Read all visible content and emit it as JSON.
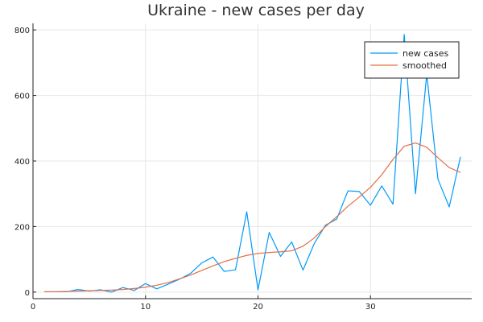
{
  "chart_data": {
    "type": "line",
    "title": "Ukraine - new cases per day",
    "xlabel": "",
    "ylabel": "",
    "xlim": [
      0,
      39
    ],
    "ylim": [
      -20,
      820
    ],
    "xticks": [
      0,
      10,
      20,
      30
    ],
    "yticks": [
      0,
      200,
      400,
      600,
      800
    ],
    "grid": true,
    "legend_position": "top-right",
    "series": [
      {
        "name": "new cases",
        "color": "#009af9",
        "x": [
          1,
          2,
          3,
          4,
          5,
          6,
          7,
          8,
          9,
          10,
          11,
          12,
          13,
          14,
          15,
          16,
          17,
          18,
          19,
          20,
          21,
          22,
          23,
          24,
          25,
          26,
          27,
          28,
          29,
          30,
          31,
          32,
          33,
          34,
          35,
          36,
          37,
          38
        ],
        "values": [
          1,
          1,
          1,
          8,
          3,
          7,
          0,
          14,
          5,
          26,
          10,
          24,
          39,
          57,
          89,
          107,
          63,
          68,
          245,
          7,
          182,
          109,
          153,
          67,
          148,
          204,
          223,
          309,
          307,
          265,
          324,
          268,
          786,
          300,
          665,
          344,
          260,
          413
        ]
      },
      {
        "name": "smoothed",
        "color": "#e26f46",
        "x": [
          1,
          2,
          3,
          4,
          5,
          6,
          7,
          8,
          9,
          10,
          11,
          12,
          13,
          14,
          15,
          16,
          17,
          18,
          19,
          20,
          21,
          22,
          23,
          24,
          25,
          26,
          27,
          28,
          29,
          30,
          31,
          32,
          33,
          34,
          35,
          36,
          37,
          38
        ],
        "values": [
          1,
          1,
          2,
          3,
          4,
          5,
          6,
          8,
          11,
          15,
          21,
          29,
          40,
          52,
          66,
          80,
          93,
          103,
          112,
          118,
          121,
          123,
          126,
          140,
          165,
          200,
          230,
          262,
          290,
          320,
          358,
          405,
          445,
          455,
          442,
          410,
          380,
          365
        ]
      }
    ]
  }
}
